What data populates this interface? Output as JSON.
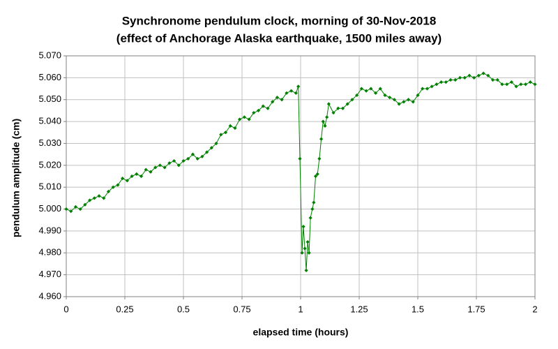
{
  "chart_data": {
    "type": "line",
    "title": "Synchronome pendulum clock, morning of 30-Nov-2018",
    "subtitle": "(effect of Anchorage Alaska earthquake, 1500 miles away)",
    "x_label": "elapsed time (hours)",
    "y_label": "pendulum amplitude (cm)",
    "x": [
      0,
      0.02,
      0.04,
      0.06,
      0.08,
      0.1,
      0.12,
      0.14,
      0.16,
      0.18,
      0.2,
      0.22,
      0.24,
      0.26,
      0.28,
      0.3,
      0.32,
      0.34,
      0.36,
      0.38,
      0.4,
      0.42,
      0.44,
      0.46,
      0.48,
      0.5,
      0.52,
      0.54,
      0.56,
      0.58,
      0.6,
      0.62,
      0.64,
      0.66,
      0.68,
      0.7,
      0.72,
      0.74,
      0.76,
      0.78,
      0.8,
      0.82,
      0.84,
      0.86,
      0.88,
      0.9,
      0.92,
      0.94,
      0.96,
      0.98,
      0.99,
      0.997,
      1.006,
      1.012,
      1.018,
      1.024,
      1.03,
      1.036,
      1.042,
      1.05,
      1.056,
      1.064,
      1.072,
      1.08,
      1.088,
      1.096,
      1.104,
      1.112,
      1.12,
      1.14,
      1.16,
      1.18,
      1.2,
      1.22,
      1.24,
      1.26,
      1.28,
      1.3,
      1.32,
      1.34,
      1.36,
      1.38,
      1.4,
      1.42,
      1.44,
      1.46,
      1.48,
      1.5,
      1.52,
      1.54,
      1.56,
      1.58,
      1.6,
      1.62,
      1.64,
      1.66,
      1.68,
      1.7,
      1.72,
      1.74,
      1.76,
      1.78,
      1.8,
      1.82,
      1.84,
      1.86,
      1.88,
      1.9,
      1.92,
      1.94,
      1.96,
      1.98,
      2
    ],
    "series": [
      {
        "color": "#008000",
        "values": [
          5.0,
          4.999,
          5.001,
          5.0,
          5.002,
          5.004,
          5.005,
          5.006,
          5.005,
          5.008,
          5.01,
          5.011,
          5.014,
          5.013,
          5.015,
          5.016,
          5.015,
          5.018,
          5.017,
          5.019,
          5.02,
          5.019,
          5.021,
          5.022,
          5.02,
          5.022,
          5.023,
          5.025,
          5.023,
          5.024,
          5.026,
          5.028,
          5.03,
          5.034,
          5.035,
          5.038,
          5.037,
          5.041,
          5.042,
          5.041,
          5.044,
          5.045,
          5.047,
          5.046,
          5.049,
          5.051,
          5.05,
          5.053,
          5.054,
          5.053,
          5.056,
          5.023,
          4.98,
          4.992,
          4.982,
          4.972,
          4.985,
          4.98,
          4.996,
          5.0,
          5.003,
          5.015,
          5.016,
          5.023,
          5.032,
          5.04,
          5.038,
          5.042,
          5.048,
          5.044,
          5.046,
          5.046,
          5.048,
          5.05,
          5.052,
          5.055,
          5.054,
          5.055,
          5.053,
          5.055,
          5.052,
          5.051,
          5.05,
          5.048,
          5.049,
          5.05,
          5.049,
          5.052,
          5.055,
          5.055,
          5.056,
          5.057,
          5.058,
          5.058,
          5.059,
          5.059,
          5.06,
          5.06,
          5.061,
          5.06,
          5.061,
          5.062,
          5.061,
          5.059,
          5.059,
          5.057,
          5.057,
          5.058,
          5.056,
          5.057,
          5.057,
          5.058,
          5.057
        ]
      }
    ],
    "xlim": [
      0,
      2
    ],
    "ylim": [
      4.96,
      5.07
    ],
    "xticks": [
      0,
      0.25,
      0.5,
      0.75,
      1,
      1.25,
      1.5,
      1.75,
      2
    ],
    "yticks": [
      {
        "value": 4.96,
        "label": "4.960"
      },
      {
        "value": 4.97,
        "label": "4.970"
      },
      {
        "value": 4.98,
        "label": "4.980"
      },
      {
        "value": 4.99,
        "label": "4.990"
      },
      {
        "value": 5.0,
        "label": "5.000"
      },
      {
        "value": 5.01,
        "label": "5.010"
      },
      {
        "value": 5.02,
        "label": "5.020"
      },
      {
        "value": 5.03,
        "label": "5.030"
      },
      {
        "value": 5.04,
        "label": "5.040"
      },
      {
        "value": 5.05,
        "label": "5.050"
      },
      {
        "value": 5.06,
        "label": "5.060"
      },
      {
        "value": 5.07,
        "label": "5.070"
      }
    ],
    "grid": true
  }
}
